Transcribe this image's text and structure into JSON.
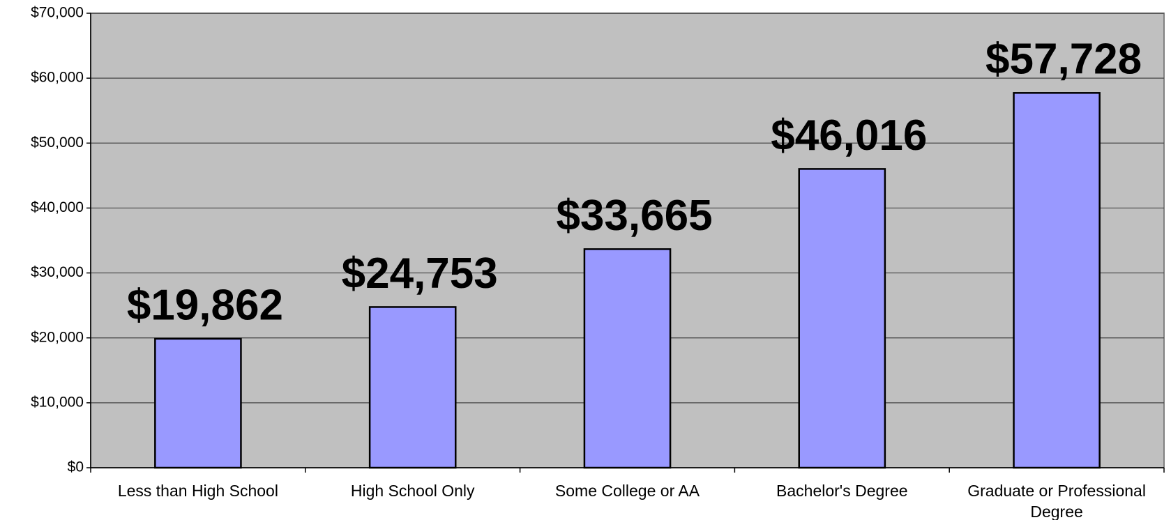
{
  "chart_data": {
    "type": "bar",
    "categories": [
      "Less than High School",
      "High School Only",
      "Some College or AA",
      "Bachelor's Degree",
      "Graduate or Professional Degree"
    ],
    "values": [
      19862,
      24753,
      33665,
      46016,
      57728
    ],
    "value_labels": [
      "$19,862",
      "$24,753",
      "$33,665",
      "$46,016",
      "$57,728"
    ],
    "color": "#9999ff",
    "ylim": [
      0,
      70000
    ],
    "yticks": [
      {
        "value": 0,
        "label": "$0"
      },
      {
        "value": 10000,
        "label": "$10,000"
      },
      {
        "value": 20000,
        "label": "$20,000"
      },
      {
        "value": 30000,
        "label": "$30,000"
      },
      {
        "value": 40000,
        "label": "$40,000"
      },
      {
        "value": 50000,
        "label": "$50,000"
      },
      {
        "value": 60000,
        "label": "$60,000"
      },
      {
        "value": 70000,
        "label": "$70,000"
      }
    ],
    "grid": true
  }
}
